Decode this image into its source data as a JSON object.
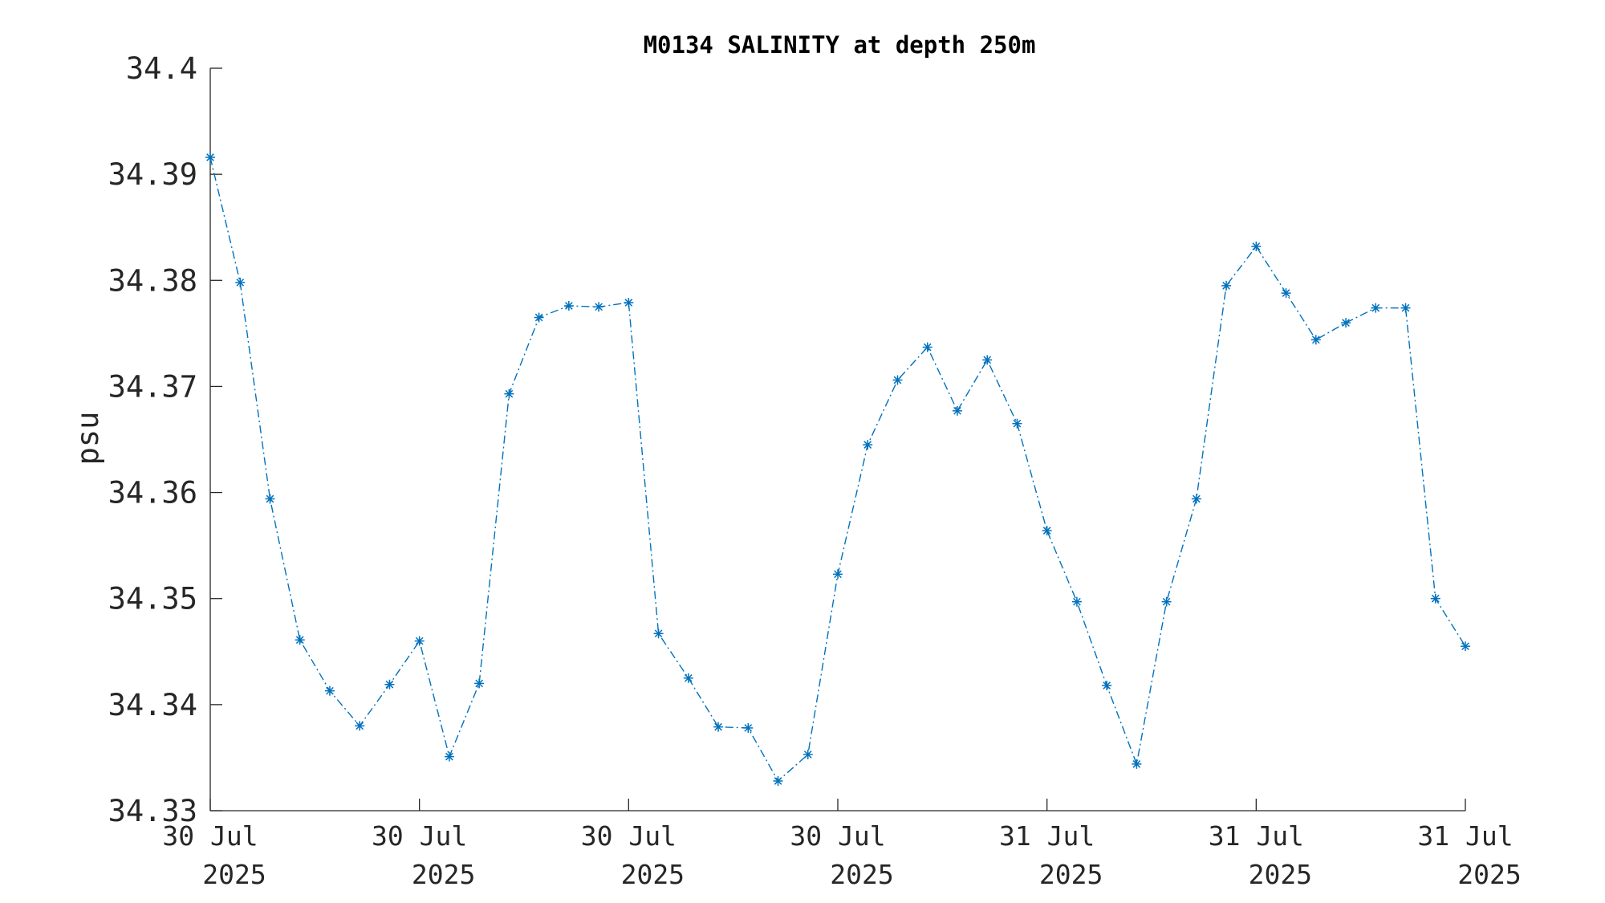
{
  "chart_data": {
    "type": "line",
    "title": "M0134 SALINITY at depth 250m",
    "ylabel": "psu",
    "xlabel": "",
    "ylim": [
      34.33,
      34.4
    ],
    "yticks": [
      34.33,
      34.34,
      34.35,
      34.36,
      34.37,
      34.38,
      34.39,
      34.4
    ],
    "ytick_labels": [
      "34.33",
      "34.34",
      "34.35",
      "34.36",
      "34.37",
      "34.38",
      "34.39",
      "34.4"
    ],
    "xticks": [
      {
        "line1": "30 Jul",
        "line2": "2025"
      },
      {
        "line1": "30 Jul",
        "line2": "2025"
      },
      {
        "line1": "30 Jul",
        "line2": "2025"
      },
      {
        "line1": "30 Jul",
        "line2": "2025"
      },
      {
        "line1": "31 Jul",
        "line2": "2025"
      },
      {
        "line1": "31 Jul",
        "line2": "2025"
      },
      {
        "line1": "31 Jul",
        "line2": "2025"
      }
    ],
    "line_style": "dash-dot",
    "marker": "asterisk",
    "color": "#0072BD",
    "series": [
      {
        "values": [
          34.3916,
          34.3798,
          34.3594,
          34.3461,
          34.3413,
          34.338,
          34.3419,
          34.346,
          34.3351,
          34.342,
          34.3693,
          34.3765,
          34.3776,
          34.3775,
          34.3779,
          34.3467,
          34.3425,
          34.3379,
          34.3378,
          34.3328,
          34.3353,
          34.3523,
          34.3645,
          34.3706,
          34.3737,
          34.3677,
          34.3725,
          34.3665,
          34.3564,
          34.3497,
          34.3418,
          34.3344,
          34.3497,
          34.3594,
          34.3795,
          34.3832,
          34.3788,
          34.3744,
          34.376,
          34.3774,
          34.3774,
          34.35,
          34.3455
        ]
      }
    ]
  }
}
